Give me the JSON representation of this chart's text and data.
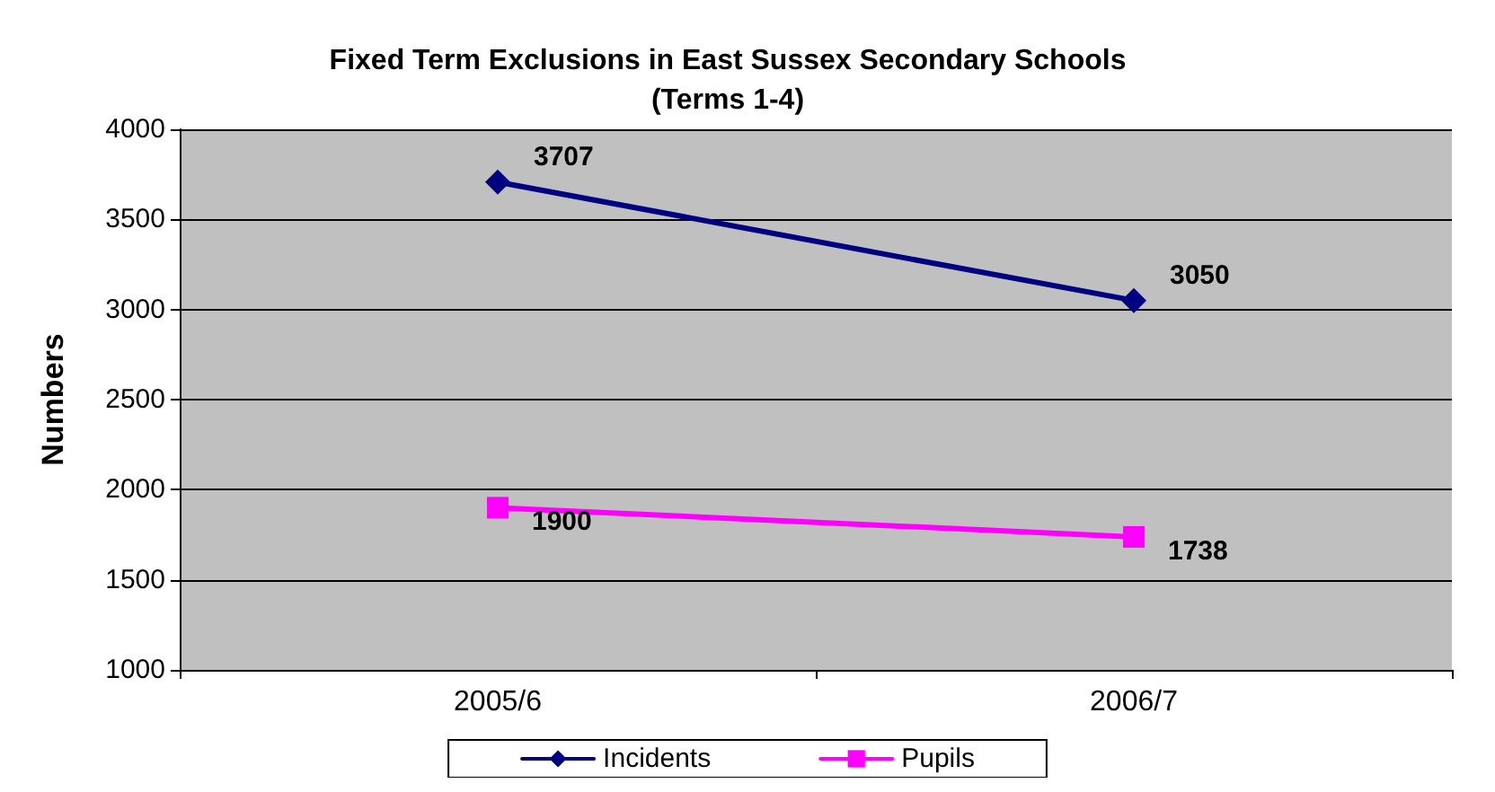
{
  "chart_data": {
    "type": "line",
    "title": "Fixed Term Exclusions in East Sussex Secondary Schools\n(Terms 1-4)",
    "ylabel": "Numbers",
    "categories": [
      "2005/6",
      "2006/7"
    ],
    "series": [
      {
        "name": "Incidents",
        "color": "#000080",
        "marker": "diamond",
        "values": [
          3707,
          3050
        ]
      },
      {
        "name": "Pupils",
        "color": "#ff00ff",
        "marker": "square",
        "values": [
          1900,
          1738
        ]
      }
    ],
    "ylim": [
      1000,
      4000
    ],
    "yticks": [
      1000,
      1500,
      2000,
      2500,
      3000,
      3500,
      4000
    ],
    "grid": "y",
    "legend": "bottom",
    "data_labels": true,
    "line_style": "solid"
  }
}
